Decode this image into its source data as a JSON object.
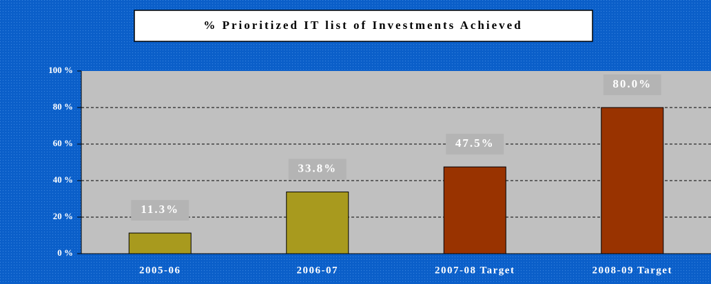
{
  "chart_data": {
    "type": "bar",
    "title": "% Prioritized IT list of Investments Achieved",
    "categories": [
      "2005-06",
      "2006-07",
      "2007-08 Target",
      "2008-09 Target"
    ],
    "values": [
      11.3,
      33.8,
      47.5,
      80.0
    ],
    "value_labels": [
      "11.3%",
      "33.8%",
      "47.5%",
      "80.0%"
    ],
    "colors": [
      "#a89a1e",
      "#a89a1e",
      "#993300",
      "#993300"
    ],
    "ylim": [
      0,
      100
    ],
    "yticks": [
      {
        "value": 0,
        "label": "0 %"
      },
      {
        "value": 20,
        "label": "20 %"
      },
      {
        "value": 40,
        "label": "40 %"
      },
      {
        "value": 60,
        "label": "60 %"
      },
      {
        "value": 80,
        "label": "80 %"
      },
      {
        "value": 100,
        "label": "100 %"
      }
    ],
    "grid": true
  }
}
